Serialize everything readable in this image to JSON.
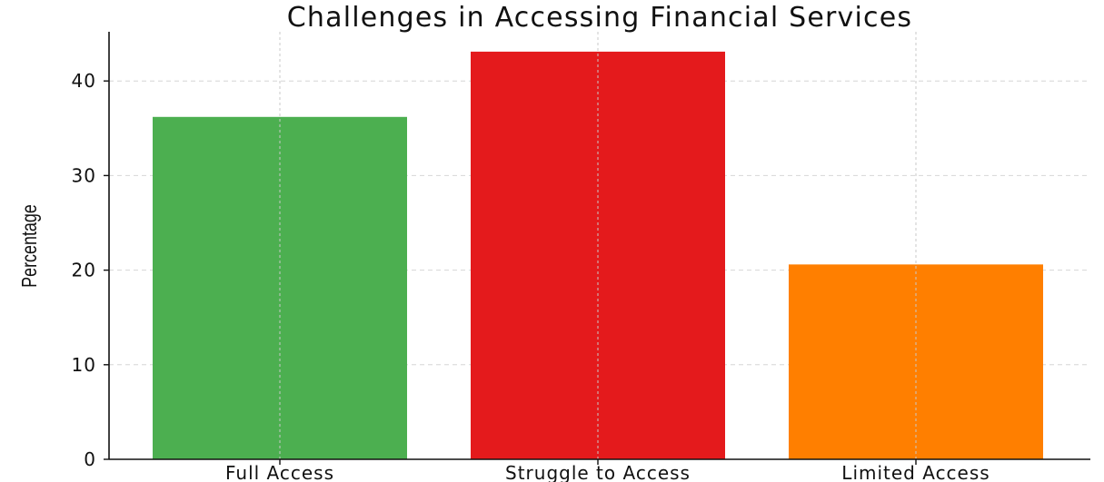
{
  "chart_data": {
    "type": "bar",
    "title": "Challenges in Accessing Financial Services",
    "xlabel": "",
    "ylabel": "Percentage",
    "categories": [
      "Full Access",
      "Struggle to Access",
      "Limited Access"
    ],
    "values": [
      36.2,
      43.1,
      20.6
    ],
    "colors": [
      "#4caf50",
      "#e41a1c",
      "#ff7f00"
    ],
    "ylim": [
      0,
      45
    ],
    "yticks": [
      "0",
      "10",
      "20",
      "30",
      "40"
    ],
    "grid": true,
    "legend": "none"
  }
}
